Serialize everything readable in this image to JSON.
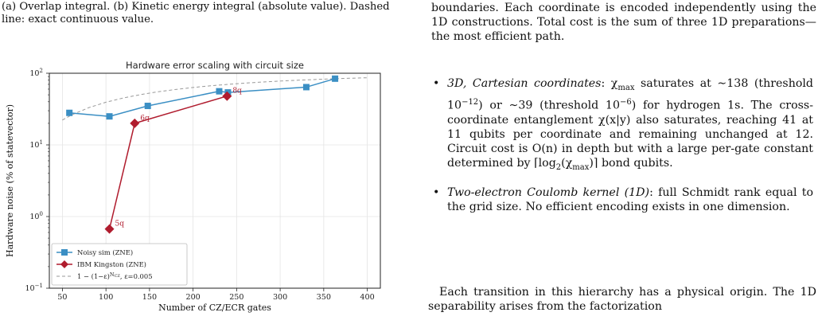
{
  "left": {
    "caption": "(a) Overlap integral. (b) Kinetic energy integral (absolute value). Dashed line: exact continuous value."
  },
  "colors": {
    "noisy_sim": "#3b8fc4",
    "ibm": "#b01c2e",
    "model": "#999999"
  },
  "chart_data": {
    "type": "line",
    "title": "Hardware error scaling with circuit size",
    "xlabel": "Number of CZ/ECR gates",
    "ylabel": "Hardware noise (% of statevector)",
    "xlim": [
      35,
      415
    ],
    "ylim": [
      0.1,
      100
    ],
    "yscale": "log",
    "x_ticks": [
      50,
      100,
      150,
      200,
      250,
      300,
      350,
      400
    ],
    "y_ticks": [
      {
        "value": 0.1,
        "base": "10",
        "exp": "−1"
      },
      {
        "value": 1,
        "base": "10",
        "exp": "0"
      },
      {
        "value": 10,
        "base": "10",
        "exp": "1"
      },
      {
        "value": 100,
        "base": "10",
        "exp": "2"
      }
    ],
    "grid": true,
    "legend_position": "lower-left",
    "series": [
      {
        "name": "Noisy sim (ZNE)",
        "marker": "square",
        "x": [
          58,
          104,
          148,
          230,
          240,
          330,
          363
        ],
        "y": [
          28,
          25,
          35,
          56,
          54,
          64,
          84
        ]
      },
      {
        "name": "IBM Kingston (ZNE)",
        "marker": "diamond",
        "x": [
          104,
          133,
          239
        ],
        "y": [
          0.67,
          20,
          48
        ],
        "point_labels": [
          "5q",
          "6q",
          "8q"
        ]
      },
      {
        "name": "1 − (1−ε)",
        "name_sup": "N",
        "name_sub": "CZ",
        "name_tail": ", ε=0.005",
        "style": "dashed",
        "x": [
          50,
          60,
          80,
          100,
          120,
          140,
          160,
          180,
          200,
          220,
          240,
          260,
          280,
          300,
          320,
          340,
          360,
          380,
          400
        ],
        "y": [
          22.2,
          26.0,
          33.0,
          39.4,
          45.2,
          50.4,
          55.2,
          59.4,
          63.3,
          66.8,
          69.9,
          72.9,
          75.5,
          77.8,
          79.9,
          81.8,
          83.6,
          85.1,
          86.5
        ]
      }
    ]
  },
  "right": {
    "top_paragraph": "boundaries. Each coordinate is encoded independently using the 1D constructions. Total cost is the sum of three 1D preparations—the most efficient path.",
    "bullets": [
      {
        "heading": "3D, Cartesian coordinates",
        "body_1": ": χ",
        "body_1_sub": "max",
        "body_2": " saturates at ∼138 (threshold 10",
        "body_2_sup": "−12",
        "body_3": ") or ∼39 (threshold 10",
        "body_3_sup": "−6",
        "body_4": ") for hydrogen 1s. The cross-coordinate entanglement χ(x|y) also saturates, reaching 41 at 11 qubits per coordinate and remaining unchanged at 12. Circuit cost is O(n) in depth but with a large per-gate constant determined by ⌈log",
        "body_4_sub": "2",
        "body_5": "(χ",
        "body_5_sub": "max",
        "body_6": ")⌉ bond qubits."
      },
      {
        "heading": "Two-electron Coulomb kernel (1D)",
        "body_1": ": full Schmidt rank equal to the grid size. No efficient encoding exists in one dimension."
      }
    ],
    "bottom_paragraph": "Each transition in this hierarchy has a physical origin. The 1D separability arises from the factorization"
  }
}
